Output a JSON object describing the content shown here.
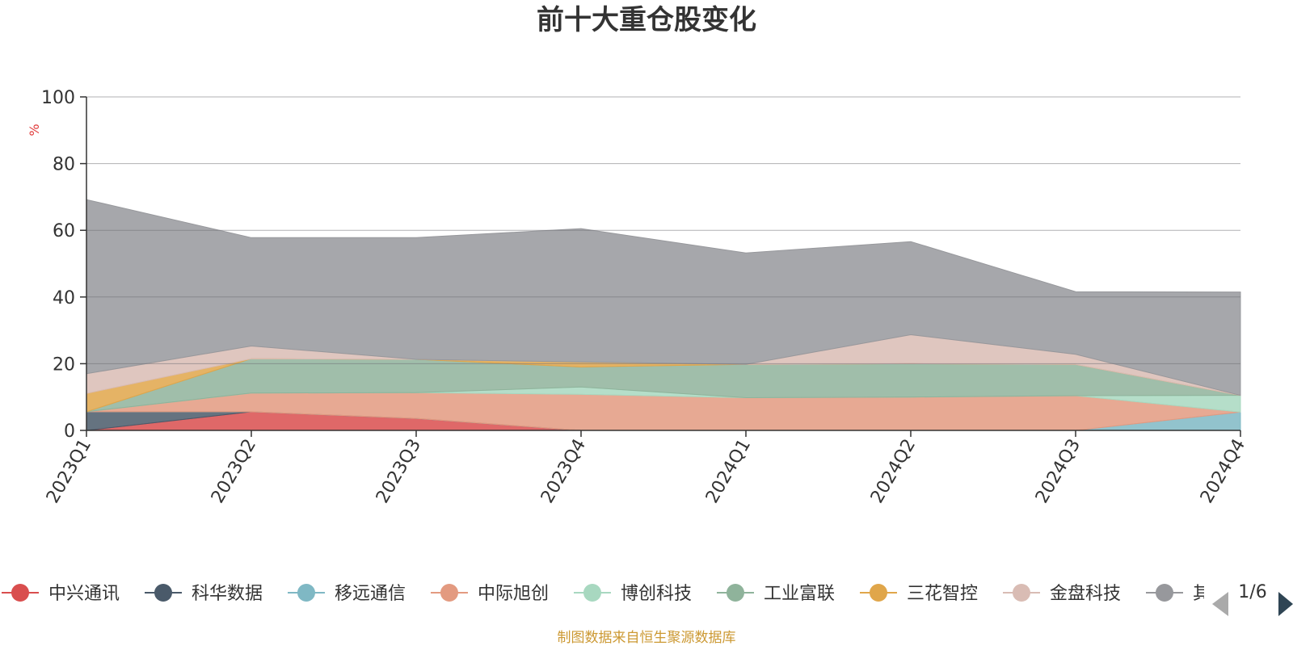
{
  "chart_data": {
    "type": "area",
    "stacked": true,
    "title": "前十大重仓股变化",
    "ylabel": "%",
    "ylim": [
      0,
      100
    ],
    "yticks": [
      0,
      20,
      40,
      60,
      80,
      100
    ],
    "categories": [
      "2023Q1",
      "2023Q2",
      "2023Q3",
      "2023Q4",
      "2024Q1",
      "2024Q2",
      "2024Q3",
      "2024Q4"
    ],
    "series": [
      {
        "name": "中兴通讯",
        "color": "#d94e4e",
        "values": [
          0.0,
          5.6,
          3.6,
          0.0,
          0.0,
          0.0,
          0.0,
          0.0
        ]
      },
      {
        "name": "科华数据",
        "color": "#4a5a6a",
        "values": [
          5.6,
          0.0,
          0.0,
          0.0,
          0.0,
          0.0,
          0.0,
          0.0
        ]
      },
      {
        "name": "移远通信",
        "color": "#7fb8c4",
        "values": [
          0.0,
          0.0,
          0.0,
          0.0,
          0.0,
          0.0,
          0.0,
          5.5
        ]
      },
      {
        "name": "中际旭创",
        "color": "#e39a80",
        "values": [
          0.0,
          5.6,
          7.7,
          10.8,
          9.8,
          10.0,
          10.4,
          0.0
        ]
      },
      {
        "name": "博创科技",
        "color": "#a8d8c0",
        "values": [
          0.0,
          0.0,
          0.0,
          2.2,
          0.0,
          0.0,
          0.0,
          5.0
        ]
      },
      {
        "name": "工业富联",
        "color": "#8fb39b",
        "values": [
          0.0,
          10.3,
          10.0,
          6.0,
          10.0,
          10.0,
          9.4,
          0.0
        ]
      },
      {
        "name": "三花智控",
        "color": "#e0a64a",
        "values": [
          5.5,
          0.0,
          0.0,
          1.5,
          0.0,
          0.0,
          0.0,
          0.0
        ]
      },
      {
        "name": "金盘科技",
        "color": "#d9bcb4",
        "values": [
          5.9,
          3.8,
          0.0,
          0.0,
          0.0,
          8.7,
          3.0,
          0.0
        ]
      },
      {
        "name": "其他",
        "color": "#97989c",
        "values": [
          52.2,
          32.5,
          36.5,
          40.0,
          33.4,
          27.9,
          18.8,
          31.0
        ]
      }
    ],
    "legend": {
      "items": [
        "中兴通讯",
        "科华数据",
        "移远通信",
        "中际旭创",
        "博创科技",
        "工业富联",
        "三花智控",
        "金盘科技",
        "其他"
      ],
      "page": "1/6"
    },
    "source_note": "制图数据来自恒生聚源数据库"
  }
}
